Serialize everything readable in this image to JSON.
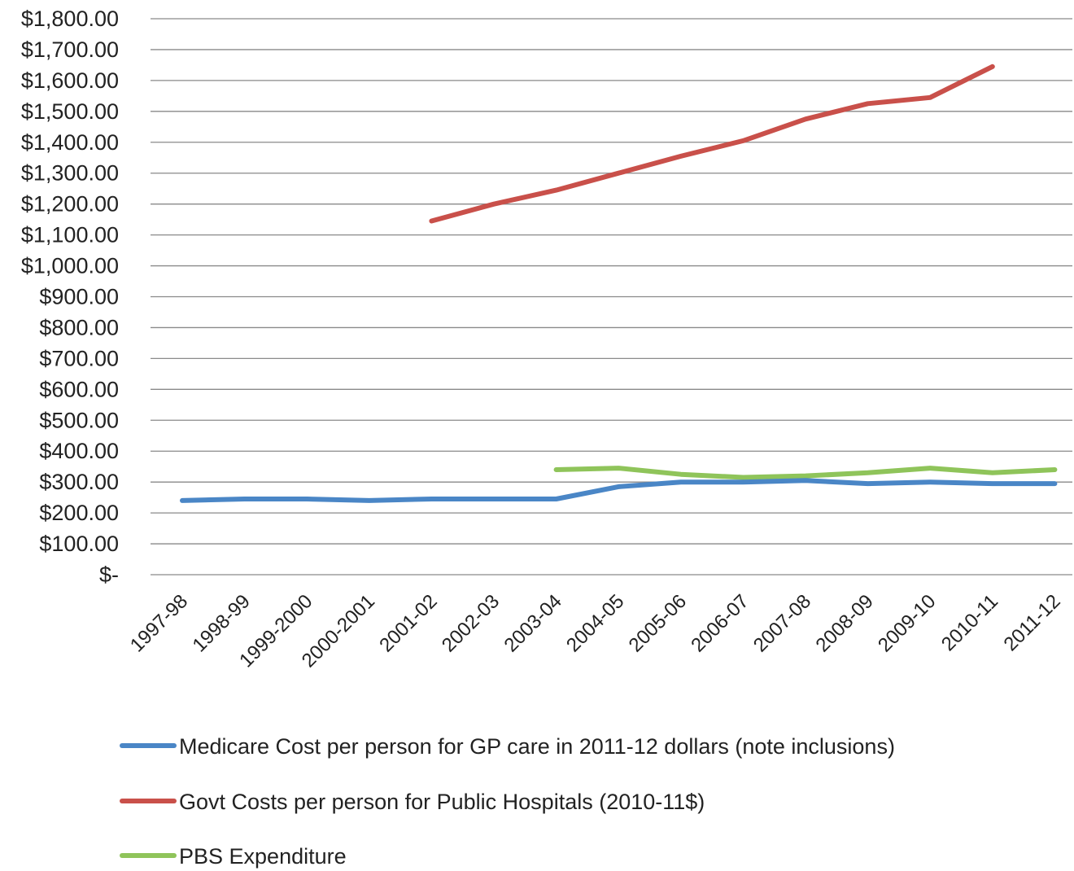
{
  "chart_data": {
    "type": "line",
    "categories": [
      "1997-98",
      "1998-99",
      "1999-2000",
      "2000-2001",
      "2001-02",
      "2002-03",
      "2003-04",
      "2004-05",
      "2005-06",
      "2006-07",
      "2007-08",
      "2008-09",
      "2009-10",
      "2010-11",
      "2011-12"
    ],
    "ylim": [
      0,
      1800
    ],
    "ytick_values": [
      0,
      100,
      200,
      300,
      400,
      500,
      600,
      700,
      800,
      900,
      1000,
      1100,
      1200,
      1300,
      1400,
      1500,
      1600,
      1700,
      1800
    ],
    "ytick_labels": [
      "$-",
      "$100.00",
      "$200.00",
      "$300.00",
      "$400.00",
      "$500.00",
      "$600.00",
      "$700.00",
      "$800.00",
      "$900.00",
      "$1,000.00",
      "$1,100.00",
      "$1,200.00",
      "$1,300.00",
      "$1,400.00",
      "$1,500.00",
      "$1,600.00",
      "$1,700.00",
      "$1,800.00"
    ],
    "grid": true,
    "legend_position": "bottom",
    "series": [
      {
        "name": "Medicare Cost per person for GP care in 2011-12 dollars (note inclusions)",
        "color": "#4a86c6",
        "values": [
          240,
          245,
          245,
          240,
          245,
          245,
          245,
          285,
          300,
          300,
          305,
          295,
          300,
          295,
          295
        ]
      },
      {
        "name": "Govt Costs per person for Public Hospitals (2010-11$)",
        "color": "#c9504a",
        "values": [
          null,
          null,
          null,
          null,
          1145,
          1200,
          1245,
          1300,
          1355,
          1405,
          1475,
          1525,
          1545,
          1645,
          null
        ]
      },
      {
        "name": "PBS Expenditure",
        "color": "#8fc45a",
        "values": [
          null,
          null,
          null,
          null,
          null,
          null,
          340,
          345,
          325,
          315,
          320,
          330,
          345,
          330,
          340
        ]
      }
    ]
  }
}
